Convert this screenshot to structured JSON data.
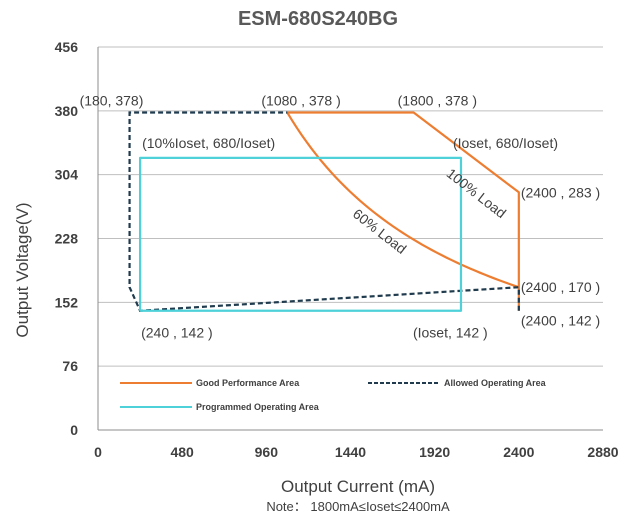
{
  "chart_data": {
    "type": "line",
    "title": "ESM-680S240BG",
    "xlabel": "Output Current (mA)",
    "ylabel": "Output Voltage(V)",
    "note": "Note： 1800mA≤Ioset≤2400mA",
    "xlim": [
      0,
      2880
    ],
    "ylim": [
      0,
      456
    ],
    "xticks": [
      0,
      480,
      960,
      1440,
      1920,
      2400,
      2880
    ],
    "yticks": [
      0,
      76,
      152,
      228,
      304,
      380,
      456
    ],
    "grid": "horizontal",
    "legend_position": "bottom-left",
    "colors": {
      "good": "#ED7D31",
      "allowed": "#1F3B4D",
      "programmed": "#4FD1D9",
      "grid": "#BFBFBF",
      "axis": "#8C8C8C"
    },
    "series": [
      {
        "name": "Good Performance Area",
        "style": "solid",
        "color": "#ED7D31",
        "segments": [
          {
            "x": [
              1080,
              1800,
              2400,
              2400,
              2400
            ],
            "y": [
              378,
              378,
              283,
              170,
              142
            ]
          }
        ],
        "curves": [
          {
            "kind": "constant_power",
            "power_w": 408,
            "x_range": [
              1080,
              2400
            ]
          }
        ]
      },
      {
        "name": "Allowed Operating Area",
        "style": "dashed",
        "color": "#1F3B4D",
        "segments": [
          {
            "x": [
              2400,
              2400,
              240,
              180,
              180,
              1080
            ],
            "y": [
              142,
              170,
              142,
              170,
              378,
              378
            ]
          }
        ]
      },
      {
        "name": "Programmed Operating Area",
        "style": "solid",
        "color": "#4FD1D9",
        "segments": [
          {
            "x": [
              240,
              240,
              2070,
              2070,
              240
            ],
            "y": [
              142,
              324,
              324,
              142,
              142
            ]
          }
        ]
      }
    ],
    "annotations": [
      {
        "text": "(180, 378)",
        "x": 180,
        "y": 378
      },
      {
        "text": "(1080 , 378 )",
        "x": 1080,
        "y": 378
      },
      {
        "text": "(1800 , 378 )",
        "x": 1800,
        "y": 378
      },
      {
        "text": "(10%Ioset, 680/Ioset)",
        "x": 240,
        "y": 324
      },
      {
        "text": "(Ioset, 680/Ioset)",
        "x": 2070,
        "y": 324
      },
      {
        "text": "(2400 , 283 )",
        "x": 2400,
        "y": 283
      },
      {
        "text": "(2400 , 170 )",
        "x": 2400,
        "y": 170
      },
      {
        "text": "(2400 , 142 )",
        "x": 2400,
        "y": 142
      },
      {
        "text": "(240 , 142 )",
        "x": 240,
        "y": 142
      },
      {
        "text": "(Ioset, 142 )",
        "x": 2070,
        "y": 142
      },
      {
        "text": "100% Load",
        "x": 2050,
        "y": 295
      },
      {
        "text": "60% Load",
        "x": 1550,
        "y": 248
      }
    ]
  }
}
